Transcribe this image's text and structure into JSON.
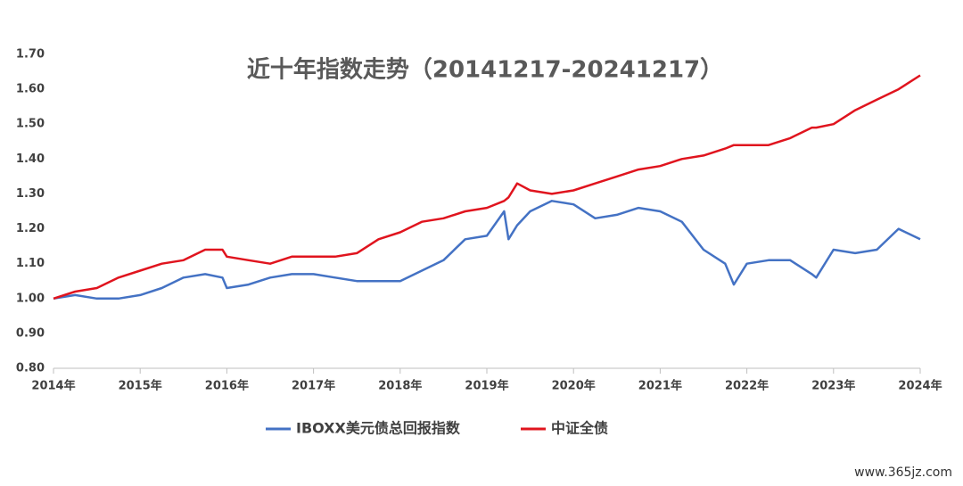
{
  "chart_data": {
    "type": "line",
    "title": "近十年指数走势（20141217-20241217）",
    "watermark": "www.365jz.com",
    "x": [
      2014,
      2014.25,
      2014.5,
      2014.75,
      2015,
      2015.25,
      2015.5,
      2015.75,
      2015.95,
      2016,
      2016.25,
      2016.5,
      2016.75,
      2017,
      2017.25,
      2017.5,
      2017.75,
      2018,
      2018.25,
      2018.5,
      2018.75,
      2019,
      2019.2,
      2019.25,
      2019.35,
      2019.5,
      2019.75,
      2020,
      2020.25,
      2020.5,
      2020.75,
      2021,
      2021.25,
      2021.5,
      2021.75,
      2021.85,
      2022,
      2022.25,
      2022.5,
      2022.75,
      2022.8,
      2023,
      2023.25,
      2023.5,
      2023.75,
      2024
    ],
    "series": [
      {
        "name": "IBOXX美元债总回报指数",
        "color": "#4472c4",
        "values": [
          1.0,
          1.01,
          1.0,
          1.0,
          1.01,
          1.03,
          1.06,
          1.07,
          1.06,
          1.03,
          1.04,
          1.06,
          1.07,
          1.07,
          1.06,
          1.05,
          1.05,
          1.05,
          1.08,
          1.11,
          1.17,
          1.18,
          1.25,
          1.17,
          1.21,
          1.25,
          1.28,
          1.27,
          1.23,
          1.24,
          1.26,
          1.25,
          1.22,
          1.14,
          1.1,
          1.04,
          1.1,
          1.11,
          1.11,
          1.07,
          1.06,
          1.14,
          1.13,
          1.14,
          1.2,
          1.17
        ]
      },
      {
        "name": "中证全债",
        "color": "#e0141e",
        "values": [
          1.0,
          1.02,
          1.03,
          1.06,
          1.08,
          1.1,
          1.11,
          1.14,
          1.14,
          1.12,
          1.11,
          1.1,
          1.12,
          1.12,
          1.12,
          1.13,
          1.17,
          1.19,
          1.22,
          1.23,
          1.25,
          1.26,
          1.28,
          1.29,
          1.33,
          1.31,
          1.3,
          1.31,
          1.33,
          1.35,
          1.37,
          1.38,
          1.4,
          1.41,
          1.43,
          1.44,
          1.44,
          1.44,
          1.46,
          1.49,
          1.49,
          1.5,
          1.54,
          1.57,
          1.6,
          1.64
        ]
      }
    ],
    "xlim": [
      2014,
      2024
    ],
    "xticks": [
      {
        "value": 2014,
        "label": "2014年"
      },
      {
        "value": 2015,
        "label": "2015年"
      },
      {
        "value": 2016,
        "label": "2016年"
      },
      {
        "value": 2017,
        "label": "2017年"
      },
      {
        "value": 2018,
        "label": "2018年"
      },
      {
        "value": 2019,
        "label": "2019年"
      },
      {
        "value": 2020,
        "label": "2020年"
      },
      {
        "value": 2021,
        "label": "2021年"
      },
      {
        "value": 2022,
        "label": "2022年"
      },
      {
        "value": 2023,
        "label": "2023年"
      },
      {
        "value": 2024,
        "label": "2024年"
      }
    ],
    "ylim": [
      0.8,
      1.7
    ],
    "yticks": [
      {
        "value": 0.8,
        "label": "0.80"
      },
      {
        "value": 0.9,
        "label": "0.90"
      },
      {
        "value": 1.0,
        "label": "1.00"
      },
      {
        "value": 1.1,
        "label": "1.10"
      },
      {
        "value": 1.2,
        "label": "1.20"
      },
      {
        "value": 1.3,
        "label": "1.30"
      },
      {
        "value": 1.4,
        "label": "1.40"
      },
      {
        "value": 1.5,
        "label": "1.50"
      },
      {
        "value": 1.6,
        "label": "1.60"
      },
      {
        "value": 1.7,
        "label": "1.70"
      }
    ],
    "grid": false,
    "legend": "bottom"
  }
}
